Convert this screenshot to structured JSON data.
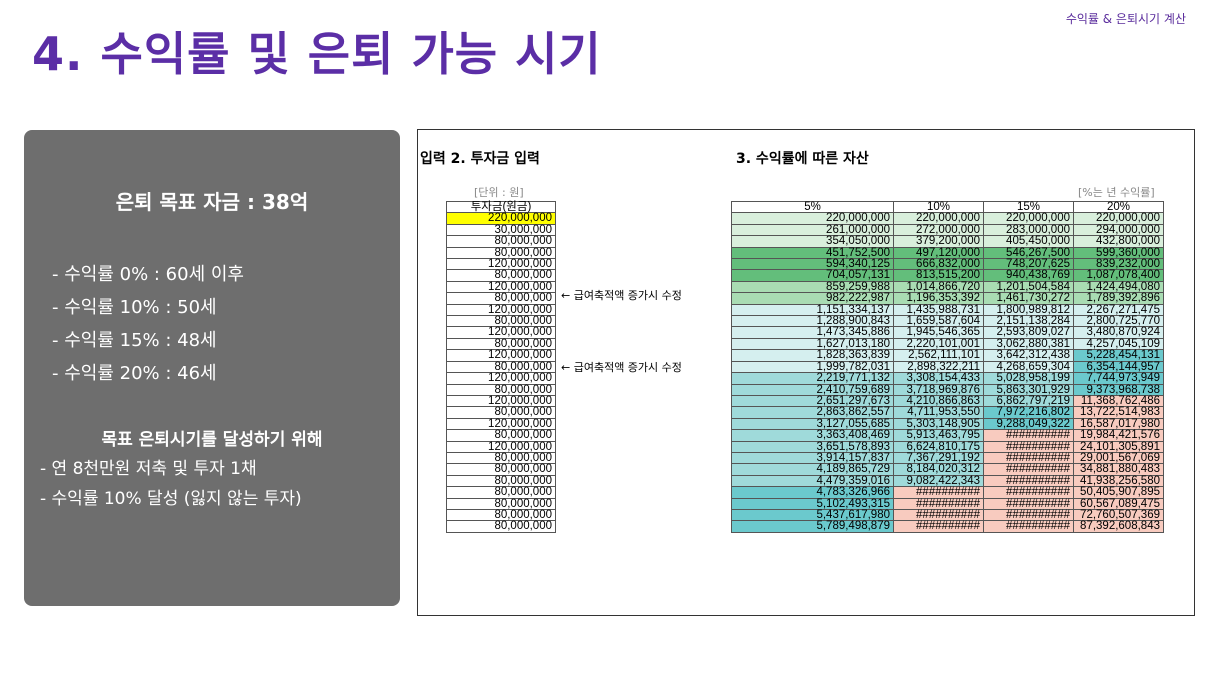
{
  "corner_label": "수익률 & 은퇴시기 계산",
  "page_title": "4. 수익률 및 은퇴 가능 시기",
  "panel": {
    "goal": "은퇴 목표 자금 : 38억",
    "rates": [
      "- 수익률   0% : 60세 이후",
      "- 수익률 10% : 50세",
      "- 수익률 15% : 48세",
      "- 수익률 20% : 46세"
    ],
    "subhead": "목표 은퇴시기를 달성하기 위해",
    "plan": [
      "- 연 8천만원 저축 및 투자 1채",
      "- 수익률 10% 달성 (잃지 않는 투자)"
    ]
  },
  "sheet": {
    "section2": "입력 2. 투자금 입력",
    "section3": "3. 수익률에 따른 자산",
    "unit": "[단위 : 원]",
    "unit_right": "[%는 년 수익률]",
    "invest_header": "투자금(원금)",
    "rate_headers": [
      "5%",
      "10%",
      "15%",
      "20%"
    ],
    "note": "← 급여축적액 증가시 수정",
    "invest": [
      "220,000,000",
      "30,000,000",
      "80,000,000",
      "80,000,000",
      "120,000,000",
      "80,000,000",
      "120,000,000",
      "80,000,000",
      "120,000,000",
      "80,000,000",
      "120,000,000",
      "80,000,000",
      "120,000,000",
      "80,000,000",
      "120,000,000",
      "80,000,000",
      "120,000,000",
      "80,000,000",
      "120,000,000",
      "80,000,000",
      "120,000,000",
      "80,000,000",
      "80,000,000",
      "80,000,000",
      "80,000,000",
      "80,000,000",
      "80,000,000",
      "80,000,000"
    ],
    "rows": [
      [
        "220,000,000",
        "220,000,000",
        "220,000,000",
        "220,000,000"
      ],
      [
        "261,000,000",
        "272,000,000",
        "283,000,000",
        "294,000,000"
      ],
      [
        "354,050,000",
        "379,200,000",
        "405,450,000",
        "432,800,000"
      ],
      [
        "451,752,500",
        "497,120,000",
        "546,267,500",
        "599,360,000"
      ],
      [
        "594,340,125",
        "666,832,000",
        "748,207,625",
        "839,232,000"
      ],
      [
        "704,057,131",
        "813,515,200",
        "940,438,769",
        "1,087,078,400"
      ],
      [
        "859,259,988",
        "1,014,866,720",
        "1,201,504,584",
        "1,424,494,080"
      ],
      [
        "982,222,987",
        "1,196,353,392",
        "1,461,730,272",
        "1,789,392,896"
      ],
      [
        "1,151,334,137",
        "1,435,988,731",
        "1,800,989,812",
        "2,267,271,475"
      ],
      [
        "1,288,900,843",
        "1,659,587,604",
        "2,151,138,284",
        "2,800,725,770"
      ],
      [
        "1,473,345,886",
        "1,945,546,365",
        "2,593,809,027",
        "3,480,870,924"
      ],
      [
        "1,627,013,180",
        "2,220,101,001",
        "3,062,880,381",
        "4,257,045,109"
      ],
      [
        "1,828,363,839",
        "2,562,111,101",
        "3,642,312,438",
        "5,228,454,131"
      ],
      [
        "1,999,782,031",
        "2,898,322,211",
        "4,268,659,304",
        "6,354,144,957"
      ],
      [
        "2,219,771,132",
        "3,308,154,433",
        "5,028,958,199",
        "7,744,973,949"
      ],
      [
        "2,410,759,689",
        "3,718,969,876",
        "5,863,301,929",
        "9,373,968,738"
      ],
      [
        "2,651,297,673",
        "4,210,866,863",
        "6,862,797,219",
        "11,368,762,486"
      ],
      [
        "2,863,862,557",
        "4,711,953,550",
        "7,972,216,802",
        "13,722,514,983"
      ],
      [
        "3,127,055,685",
        "5,303,148,905",
        "9,288,049,322",
        "16,587,017,980"
      ],
      [
        "3,363,408,469",
        "5,913,463,795",
        "##########",
        "19,984,421,576"
      ],
      [
        "3,651,578,893",
        "6,624,810,175",
        "##########",
        "24,101,305,891"
      ],
      [
        "3,914,157,837",
        "7,367,291,192",
        "##########",
        "29,001,567,069"
      ],
      [
        "4,189,865,729",
        "8,184,020,312",
        "##########",
        "34,881,880,483"
      ],
      [
        "4,479,359,016",
        "9,082,422,343",
        "##########",
        "41,938,256,580"
      ],
      [
        "4,783,326,966",
        "##########",
        "##########",
        "50,405,907,895"
      ],
      [
        "5,102,493,315",
        "##########",
        "##########",
        "60,567,089,475"
      ],
      [
        "5,437,617,980",
        "##########",
        "##########",
        "72,760,507,369"
      ],
      [
        "5,789,498,879",
        "##########",
        "##########",
        "87,392,608,843"
      ]
    ],
    "colors": {
      "highlight": "#ffff00",
      "green_dark": "#63be7b",
      "green_mid": "#a9dcb3",
      "green_light": "#d9efdc",
      "teal_light": "#d5efef",
      "teal": "#9fdada",
      "teal_dark": "#6bc9cd",
      "salmon": "#f8cbbf"
    }
  }
}
